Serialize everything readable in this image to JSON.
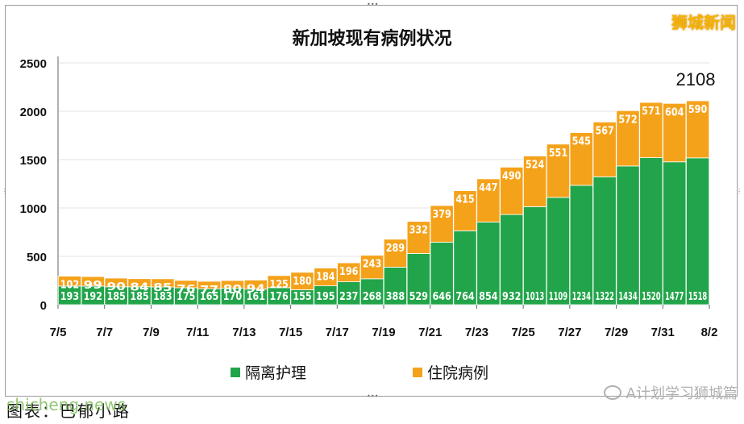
{
  "brand": "狮城新闻",
  "source_text": "图表：巴郁小路",
  "watermark": "shicheng.news",
  "wechat_text": "A计划学习狮城篇",
  "colors": {
    "isolation": "#22a54a",
    "hospital": "#f5a21b"
  },
  "chart_data": {
    "type": "bar",
    "stacked": true,
    "title": "新加坡现有病例状况",
    "categories": [
      "7/5",
      "7/6",
      "7/7",
      "7/8",
      "7/9",
      "7/10",
      "7/11",
      "7/12",
      "7/13",
      "7/14",
      "7/15",
      "7/16",
      "7/17",
      "7/18",
      "7/19",
      "7/20",
      "7/21",
      "7/22",
      "7/23",
      "7/24",
      "7/25",
      "7/26",
      "7/27",
      "7/28",
      "7/29",
      "7/30",
      "7/31",
      "8/1"
    ],
    "xtick_labels": [
      "7/5",
      "7/7",
      "7/9",
      "7/11",
      "7/13",
      "7/15",
      "7/17",
      "7/19",
      "7/21",
      "7/23",
      "7/25",
      "7/27",
      "7/29",
      "7/31",
      "8/2"
    ],
    "series": [
      {
        "name": "隔离护理",
        "values": [
          193,
          192,
          185,
          185,
          183,
          175,
          165,
          170,
          161,
          176,
          155,
          195,
          237,
          268,
          388,
          529,
          646,
          764,
          854,
          932,
          1013,
          1109,
          1234,
          1322,
          1434,
          1520,
          1477,
          1518
        ]
      },
      {
        "name": "住院病例",
        "values": [
          102,
          99,
          90,
          84,
          85,
          76,
          77,
          80,
          94,
          125,
          180,
          184,
          196,
          243,
          289,
          332,
          379,
          415,
          447,
          490,
          524,
          551,
          545,
          567,
          572,
          571,
          604,
          590
        ]
      }
    ],
    "ylim": [
      0,
      2500
    ],
    "yticks": [
      0,
      500,
      1000,
      1500,
      2000,
      2500
    ],
    "annotation": "2108",
    "grid": true,
    "legend_position": "bottom"
  }
}
